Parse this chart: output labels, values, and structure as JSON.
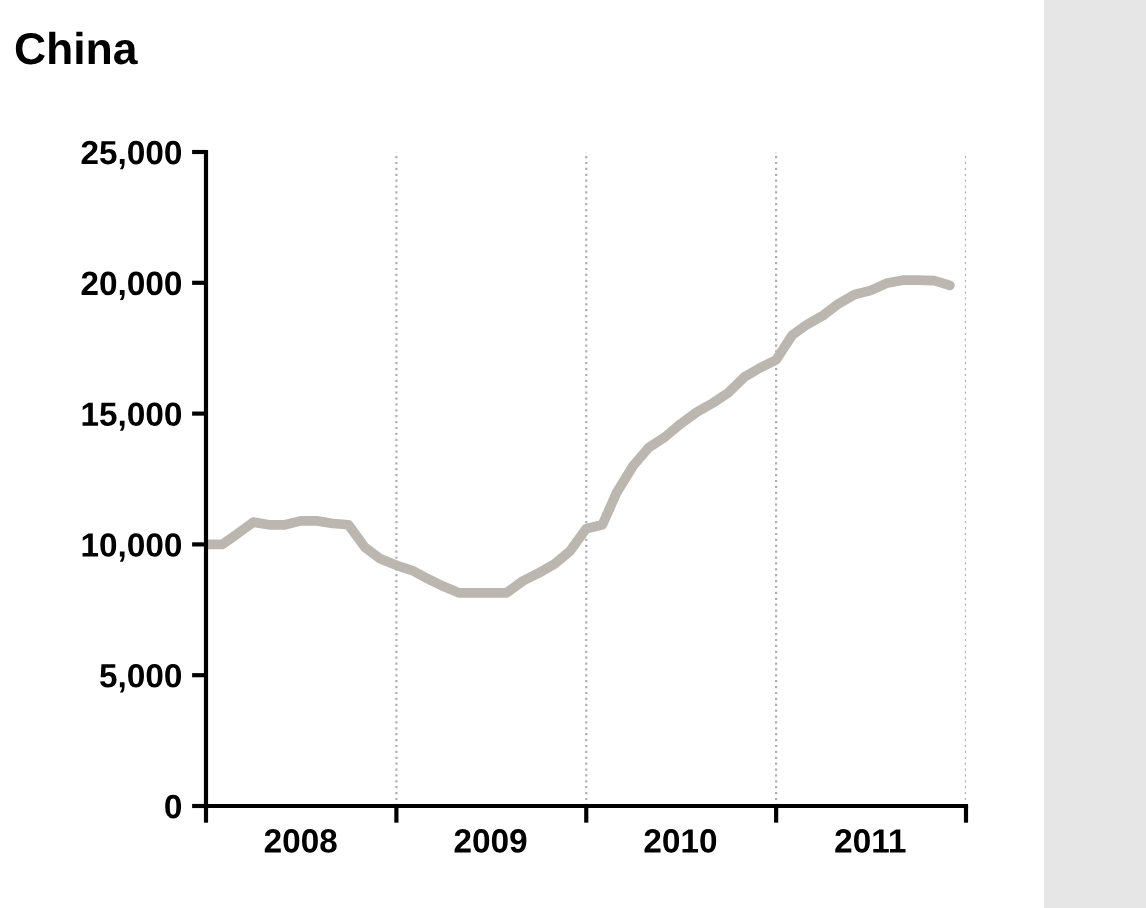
{
  "chart_data": {
    "type": "line",
    "title": "China",
    "x": [
      "2008-01",
      "2008-02",
      "2008-03",
      "2008-04",
      "2008-05",
      "2008-06",
      "2008-07",
      "2008-08",
      "2008-09",
      "2008-10",
      "2008-11",
      "2008-12",
      "2009-01",
      "2009-02",
      "2009-03",
      "2009-04",
      "2009-05",
      "2009-06",
      "2009-07",
      "2009-08",
      "2009-09",
      "2009-10",
      "2009-11",
      "2009-12",
      "2010-01",
      "2010-02",
      "2010-03",
      "2010-04",
      "2010-05",
      "2010-06",
      "2010-07",
      "2010-08",
      "2010-09",
      "2010-10",
      "2010-11",
      "2010-12",
      "2011-01",
      "2011-02",
      "2011-03",
      "2011-04",
      "2011-05",
      "2011-06",
      "2011-07",
      "2011-08",
      "2011-09",
      "2011-10",
      "2011-11",
      "2011-12"
    ],
    "series": [
      {
        "color": "#bcb6b1",
        "values": [
          10000,
          10000,
          10400,
          10850,
          10750,
          10750,
          10900,
          10900,
          10800,
          10750,
          9900,
          9450,
          9200,
          9000,
          8700,
          8400,
          8150,
          8150,
          8150,
          8150,
          8600,
          8900,
          9250,
          9750,
          10600,
          10750,
          12000,
          13000,
          13700,
          14100,
          14600,
          15050,
          15400,
          15800,
          16400,
          16750,
          17050,
          18000,
          18400,
          18750,
          19200,
          19550,
          19700,
          19980,
          20100,
          20100,
          20080,
          19900
        ]
      }
    ],
    "xlim": [
      "2008-01",
      "2012-01"
    ],
    "xticks": [
      {
        "value": "2008-01",
        "label": null
      },
      {
        "value": "2008-07",
        "label": "2008"
      },
      {
        "value": "2009-01",
        "label": null
      },
      {
        "value": "2009-07",
        "label": "2009"
      },
      {
        "value": "2010-01",
        "label": null
      },
      {
        "value": "2010-07",
        "label": "2010"
      },
      {
        "value": "2011-01",
        "label": null
      },
      {
        "value": "2011-07",
        "label": "2011"
      },
      {
        "value": "2012-01",
        "label": null
      }
    ],
    "ylim": [
      0,
      25000
    ],
    "yticks": [
      {
        "value": 0,
        "label": "0"
      },
      {
        "value": 5000,
        "label": "5,000"
      },
      {
        "value": 10000,
        "label": "10,000"
      },
      {
        "value": 15000,
        "label": "15,000"
      },
      {
        "value": 20000,
        "label": "20,000"
      },
      {
        "value": 25000,
        "label": "25,000"
      }
    ],
    "grid": "x",
    "legend": false,
    "marker": "none",
    "line_style": "solid"
  }
}
